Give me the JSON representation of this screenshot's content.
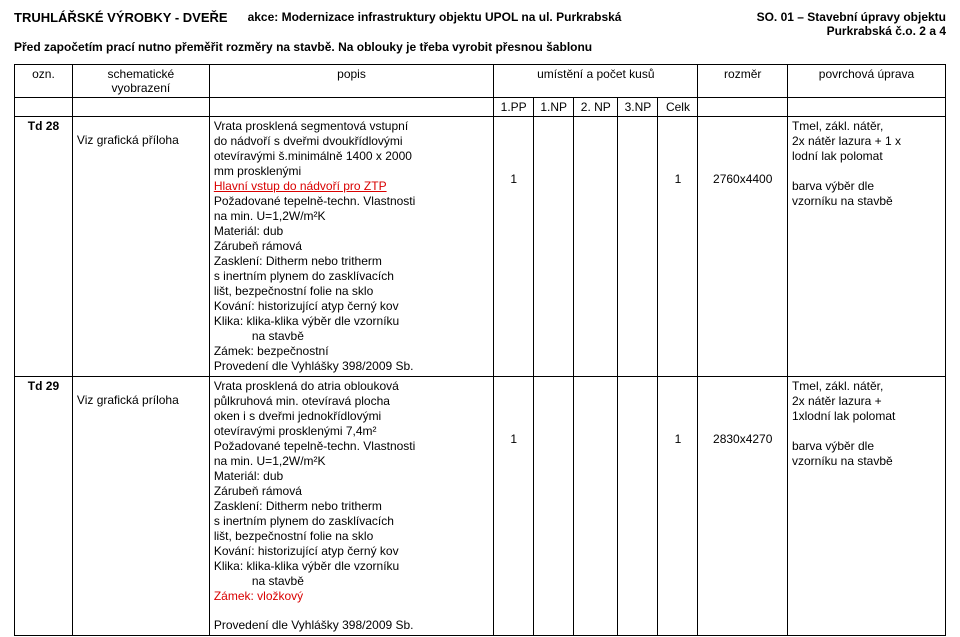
{
  "header": {
    "title_main": "TRUHLÁŘSKÉ  VÝROBKY - DVEŘE",
    "action_label": "akce:",
    "action_text": "Modernizace infrastruktury objektu UPOL na ul. Purkrabská",
    "right_line1": "SO. 01 – Stavební úpravy objektu",
    "right_line2": "Purkrabská č.o. 2 a 4",
    "sub": "Před započetím prací nutno přeměřit rozměry na stavbě. Na oblouky je třeba vyrobit přesnou šablonu"
  },
  "table_header": {
    "ozn": "ozn.",
    "schema": "schematické vyobrazení",
    "popis": "popis",
    "umisteni": "umístění a počet kusů",
    "rozmer": "rozměr",
    "povrch": "povrchová úprava",
    "pp": "1.PP",
    "np1": "1.NP",
    "np2": "2. NP",
    "np3": "3.NP",
    "celk": "Celk"
  },
  "rows": [
    {
      "ozn": "Td 28",
      "schema": "Viz grafická příloha",
      "popis_lines": [
        {
          "t": "Vrata prosklená segmentová vstupní"
        },
        {
          "t": "do nádvoří  s dveřmi dvoukřídlovými"
        },
        {
          "t": "otevíravými š.minimálně 1400 x 2000"
        },
        {
          "t": "mm prosklenými"
        },
        {
          "t": "Hlavní  vstup do nádvoří pro ZTP",
          "red": true,
          "underline": true
        },
        {
          "t": "Požadované tepelně-techn. Vlastnosti"
        },
        {
          "t": "na min. U=1,2W/m²K"
        },
        {
          "t": "Materiál: dub"
        },
        {
          "t": "Zárubeň rámová"
        },
        {
          "t": "Zasklení:  Ditherm nebo tritherm"
        },
        {
          "t": "s inertním plynem  do zasklívacích"
        },
        {
          "t": "lišt, bezpečnostní folie na sklo"
        },
        {
          "t": "Kování: historizující atyp černý kov"
        },
        {
          "t": "Klika:     klika-klika výběr dle vzorníku"
        },
        {
          "t": "na stavbě",
          "indent": true
        },
        {
          "t": "Zámek: bezpečnostní"
        },
        {
          "t": "Provedení dle Vyhlášky 398/2009 Sb."
        }
      ],
      "pp": "1",
      "np1": "",
      "np2": "",
      "np3": "",
      "celk": "1",
      "rozmer": "2760x4400",
      "povrch_lines": [
        {
          "t": "Tmel, zákl. nátěr,"
        },
        {
          "t": "2x nátěr lazura + 1 x"
        },
        {
          "t": "lodní lak polomat"
        },
        {
          "t": ""
        },
        {
          "t": "barva výběr  dle"
        },
        {
          "t": "vzorníku na stavbě"
        }
      ]
    },
    {
      "ozn": "Td 29",
      "schema": "Viz grafická príloha",
      "popis_lines": [
        {
          "t": "Vrata prosklená do atria  oblouková"
        },
        {
          "t": "půlkruhová min. otevíravá plocha"
        },
        {
          "t": "oken i  s dveřmi jednokřídlovými"
        },
        {
          "t": "otevíravými prosklenými 7,4m²"
        },
        {
          "t": "Požadované tepelně-techn. Vlastnosti"
        },
        {
          "t": "na min. U=1,2W/m²K"
        },
        {
          "t": "Materiál: dub"
        },
        {
          "t": "Zárubeň rámová"
        },
        {
          "t": "Zasklení:  Ditherm nebo tritherm"
        },
        {
          "t": "s inertním plynem  do zasklívacích"
        },
        {
          "t": "lišt, bezpečnostní folie na sklo"
        },
        {
          "t": "Kování: historizující atyp černý kov"
        },
        {
          "t": "Klika:     klika-klika výběr dle vzorníku"
        },
        {
          "t": "na stavbě",
          "indent": true
        },
        {
          "t": "Zámek: vložkový",
          "red": true
        }
      ],
      "footer": "Provedení dle Vyhlášky 398/2009 Sb.",
      "pp": "1",
      "np1": "",
      "np2": "",
      "np3": "",
      "celk": "1",
      "rozmer": "2830x4270",
      "povrch_lines": [
        {
          "t": "Tmel, zákl. nátěr,"
        },
        {
          "t": "2x nátěr lazura +"
        },
        {
          "t": "1xlodní lak polomat"
        },
        {
          "t": ""
        },
        {
          "t": "barva výběr  dle"
        },
        {
          "t": "vzorníku na stavbě"
        }
      ]
    }
  ]
}
